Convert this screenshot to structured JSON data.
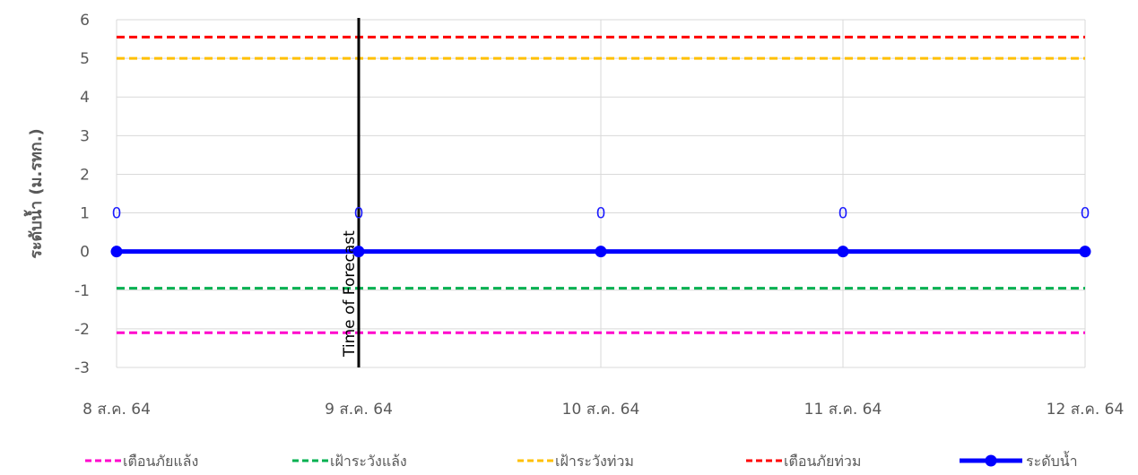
{
  "chart_data": {
    "type": "line",
    "ylabel": "ระดับน้ำ (ม.รทก.)",
    "xlabel": "",
    "ylim": [
      -3,
      6
    ],
    "yticks": [
      -3,
      -2,
      -1,
      0,
      1,
      2,
      3,
      4,
      5,
      6
    ],
    "categories": [
      "8 ส.ค. 64",
      "9 ส.ค. 64",
      "10 ส.ค. 64",
      "11 ส.ค. 64",
      "12 ส.ค. 64"
    ],
    "grid": true,
    "legend_position": "bottom",
    "annotation": {
      "text": "Time of Forecast",
      "x": "9 ส.ค. 64"
    },
    "series": [
      {
        "name": "เตือนภัยแล้ง",
        "style": "dashed",
        "color": "#ff00cc",
        "values": [
          -2.1,
          -2.1,
          -2.1,
          -2.1,
          -2.1
        ]
      },
      {
        "name": "เฝ้าระวังแล้ง",
        "style": "dashed",
        "color": "#00b050",
        "values": [
          -0.95,
          -0.95,
          -0.95,
          -0.95,
          -0.95
        ]
      },
      {
        "name": "เฝ้าระวังท่วม",
        "style": "dashed",
        "color": "#ffc000",
        "values": [
          5.0,
          5.0,
          5.0,
          5.0,
          5.0
        ]
      },
      {
        "name": "เตือนภัยท่วม",
        "style": "dashed",
        "color": "#ff0000",
        "values": [
          5.55,
          5.55,
          5.55,
          5.55,
          5.55
        ]
      },
      {
        "name": "ระดับน้ำ",
        "style": "solid-marker",
        "color": "#0000ff",
        "values": [
          0,
          0,
          0,
          0,
          0
        ],
        "data_labels": [
          "0",
          "0",
          "0",
          "0",
          "0"
        ]
      }
    ]
  }
}
